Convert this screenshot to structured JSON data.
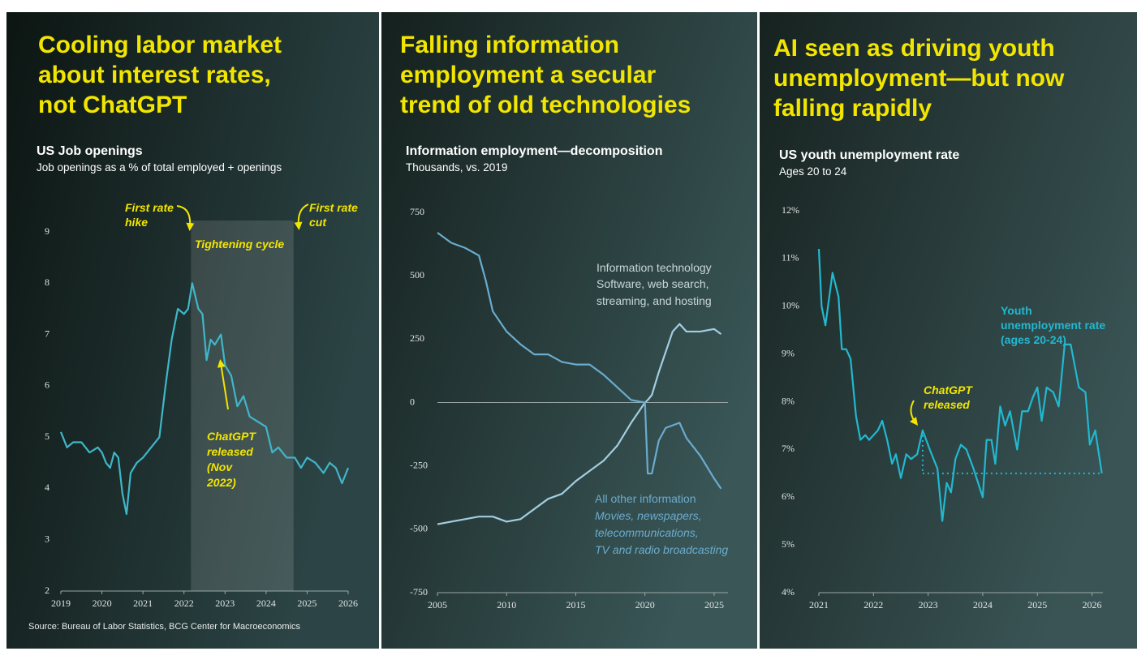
{
  "chart_data": [
    {
      "type": "line",
      "headline": [
        "Cooling labor market",
        "about interest rates,",
        "not ChatGPT"
      ],
      "title": "US Job openings",
      "subtitle": "Job openings as a % of total employed + openings",
      "x": [
        2019,
        2019.15,
        2019.3,
        2019.5,
        2019.7,
        2019.9,
        2020,
        2020.1,
        2020.2,
        2020.3,
        2020.4,
        2020.5,
        2020.6,
        2020.7,
        2020.85,
        2021,
        2021.2,
        2021.4,
        2021.55,
        2021.7,
        2021.85,
        2022,
        2022.1,
        2022.2,
        2022.35,
        2022.45,
        2022.55,
        2022.65,
        2022.75,
        2022.9,
        2023,
        2023.15,
        2023.3,
        2023.45,
        2023.6,
        2023.8,
        2024,
        2024.15,
        2024.3,
        2024.5,
        2024.7,
        2024.85,
        2025,
        2025.2,
        2025.4,
        2025.55,
        2025.7,
        2025.85,
        2026
      ],
      "values": [
        5.1,
        4.8,
        4.9,
        4.9,
        4.7,
        4.8,
        4.7,
        4.5,
        4.4,
        4.7,
        4.6,
        3.9,
        3.5,
        4.3,
        4.5,
        4.6,
        4.8,
        5.0,
        6.0,
        6.9,
        7.5,
        7.4,
        7.5,
        8.0,
        7.5,
        7.4,
        6.5,
        6.9,
        6.8,
        7.0,
        6.4,
        6.2,
        5.6,
        5.8,
        5.4,
        5.3,
        5.2,
        4.7,
        4.8,
        4.6,
        4.6,
        4.4,
        4.6,
        4.5,
        4.3,
        4.5,
        4.4,
        4.1,
        4.4
      ],
      "color": "#3fb7c9",
      "xlim": [
        2019,
        2026
      ],
      "xticks": [
        2019,
        2020,
        2021,
        2022,
        2023,
        2024,
        2025,
        2026
      ],
      "ylim": [
        2,
        9
      ],
      "yticks": [
        2,
        3,
        4,
        5,
        6,
        7,
        8,
        9
      ],
      "shaded_range": [
        2022.17,
        2024.67
      ],
      "annotations": [
        "First rate hike",
        "First rate cut",
        "Tightening cycle",
        "ChatGPT released (Nov 2022)"
      ],
      "annotation_color": "#f2e600"
    },
    {
      "type": "line",
      "headline": [
        "Falling information",
        "employment a secular",
        "trend of old technologies"
      ],
      "title": "Information employment—decomposition",
      "subtitle": "Thousands, vs. 2019",
      "x": [
        2005,
        2006,
        2007,
        2008,
        2008.5,
        2009,
        2010,
        2011,
        2012,
        2013,
        2014,
        2015,
        2016,
        2017,
        2018,
        2019,
        2020,
        2020.2,
        2020.5,
        2021,
        2021.5,
        2022,
        2022.5,
        2023,
        2024,
        2025,
        2025.5
      ],
      "series": [
        {
          "name": "Information technology",
          "description": [
            "Software, web search,",
            "streaming, and hosting"
          ],
          "color": "#a3cde0",
          "values": [
            -480,
            -470,
            -460,
            -450,
            -450,
            -450,
            -470,
            -460,
            -420,
            -380,
            -360,
            -310,
            -270,
            -230,
            -170,
            -80,
            0,
            10,
            30,
            120,
            200,
            280,
            310,
            280,
            280,
            290,
            270
          ]
        },
        {
          "name": "All other information",
          "description": [
            "Movies, newspapers,",
            "telecommunications,",
            "TV and radio broadcasting"
          ],
          "color": "#6aaccf",
          "values": [
            670,
            630,
            610,
            580,
            480,
            360,
            280,
            230,
            190,
            190,
            160,
            150,
            150,
            110,
            60,
            10,
            0,
            -280,
            -280,
            -150,
            -100,
            -90,
            -80,
            -140,
            -210,
            -300,
            -340
          ]
        }
      ],
      "xlim": [
        2005,
        2026
      ],
      "xticks": [
        2005,
        2010,
        2015,
        2020,
        2025
      ],
      "ylim": [
        -750,
        750
      ],
      "yticks": [
        -750,
        -500,
        -250,
        0,
        250,
        500,
        750
      ],
      "zero_line": true
    },
    {
      "type": "line",
      "headline": [
        "AI seen as driving youth",
        "unemployment—but now",
        "falling rapidly"
      ],
      "title": "US youth unemployment rate",
      "subtitle": "Ages 20 to 24",
      "x": [
        2021.0,
        2021.05,
        2021.12,
        2021.25,
        2021.36,
        2021.42,
        2021.5,
        2021.58,
        2021.68,
        2021.76,
        2021.85,
        2021.92,
        2022.08,
        2022.16,
        2022.25,
        2022.34,
        2022.41,
        2022.5,
        2022.6,
        2022.69,
        2022.8,
        2022.9,
        2023.03,
        2023.17,
        2023.26,
        2023.34,
        2023.42,
        2023.5,
        2023.6,
        2023.7,
        2023.83,
        2024.0,
        2024.07,
        2024.16,
        2024.23,
        2024.32,
        2024.41,
        2024.5,
        2024.63,
        2024.72,
        2024.83,
        2024.92,
        2025.0,
        2025.08,
        2025.17,
        2025.29,
        2025.39,
        2025.5,
        2025.61,
        2025.76,
        2025.88,
        2025.96,
        2026.06,
        2026.18
      ],
      "series": [
        {
          "name": "Youth unemployment rate (ages 20-24)",
          "color": "#22b8d0",
          "values": [
            11.2,
            10.0,
            9.6,
            10.7,
            10.2,
            9.1,
            9.1,
            8.9,
            7.7,
            7.2,
            7.3,
            7.2,
            7.4,
            7.6,
            7.2,
            6.7,
            6.9,
            6.4,
            6.9,
            6.8,
            6.9,
            7.4,
            7.0,
            6.6,
            5.5,
            6.3,
            6.1,
            6.8,
            7.1,
            7.0,
            6.6,
            6.0,
            7.2,
            7.2,
            6.7,
            7.9,
            7.5,
            7.8,
            7.0,
            7.8,
            7.8,
            8.1,
            8.3,
            7.6,
            8.3,
            8.2,
            7.9,
            9.2,
            9.2,
            8.3,
            8.2,
            7.1,
            7.4,
            6.5
          ]
        }
      ],
      "xlim": [
        2021,
        2026.2
      ],
      "xticks": [
        2021,
        2022,
        2023,
        2024,
        2025,
        2026
      ],
      "ylim": [
        4,
        12
      ],
      "yticks": [
        {
          "value": 4,
          "label": "4%"
        },
        {
          "value": 5,
          "label": "5%"
        },
        {
          "value": 6,
          "label": "6%"
        },
        {
          "value": 7,
          "label": "7%"
        },
        {
          "value": 8,
          "label": "8%"
        },
        {
          "value": 9,
          "label": "9%"
        },
        {
          "value": 10,
          "label": "10%"
        },
        {
          "value": 11,
          "label": "11%"
        },
        {
          "value": 12,
          "label": "12%"
        }
      ],
      "reference": {
        "x": 2022.9,
        "y": 6.5
      },
      "annotations": [
        "ChatGPT released"
      ],
      "annotation_color": "#f2e600"
    }
  ],
  "source": "Source: Bureau of Labor Statistics, BCG Center for Macroeconomics"
}
